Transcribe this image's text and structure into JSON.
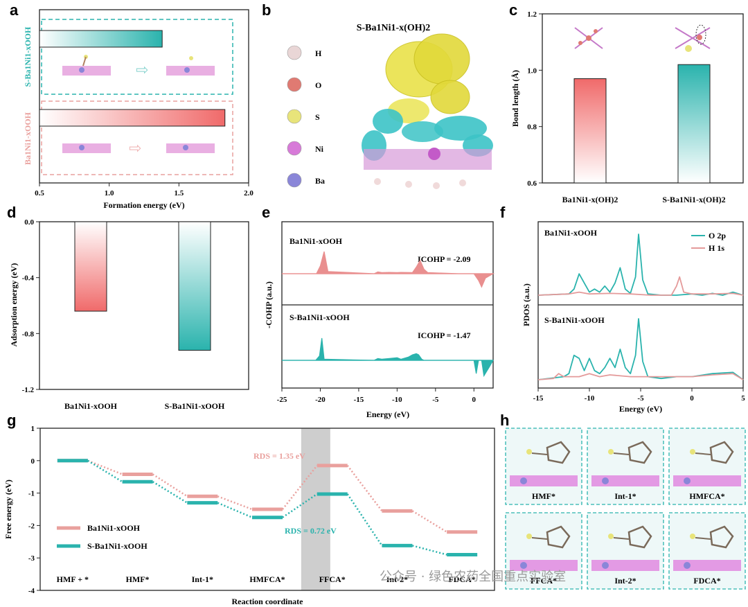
{
  "panels": {
    "a": {
      "label": "a",
      "chart_data": {
        "type": "bar",
        "orientation": "horizontal",
        "categories": [
          "S-Ba1Ni1-xOOH",
          "Ba1Ni1-xOOH"
        ],
        "series": [
          {
            "values": [
              1.38,
              1.83
            ]
          }
        ],
        "xlabel": "Formation energy (eV)",
        "xlim": [
          0.5,
          2.0
        ],
        "xticks": [
          "0.5",
          "1.0",
          "1.5",
          "2.0"
        ],
        "colors": [
          "#2ab3ad",
          "#f06a6a"
        ]
      }
    },
    "b": {
      "label": "b",
      "title": "S-Ba1Ni1-x(OH)2",
      "legend": [
        {
          "label": "H",
          "color": "#e9d6d6"
        },
        {
          "label": "O",
          "color": "#e07a72"
        },
        {
          "label": "S",
          "color": "#e8e47a"
        },
        {
          "label": "Ni",
          "color": "#d77ad8"
        },
        {
          "label": "Ba",
          "color": "#8a86d8"
        }
      ]
    },
    "c": {
      "label": "c",
      "chart_data": {
        "type": "bar",
        "categories": [
          "Ba1Ni1-x(OH)2",
          "S-Ba1Ni1-x(OH)2"
        ],
        "series": [
          {
            "values": [
              0.97,
              1.02
            ]
          }
        ],
        "ylabel": "Bond length (Å)",
        "ylim": [
          0.6,
          1.2
        ],
        "yticks": [
          "0.6",
          "0.8",
          "1.0",
          "1.2"
        ],
        "colors": [
          "#f06a6a",
          "#2ab3ad"
        ]
      }
    },
    "d": {
      "label": "d",
      "chart_data": {
        "type": "bar",
        "categories": [
          "Ba1Ni1-xOOH",
          "S-Ba1Ni1-xOOH"
        ],
        "series": [
          {
            "values": [
              -0.64,
              -0.92
            ]
          }
        ],
        "ylabel": "Adsorption energy (eV)",
        "ylim": [
          -1.2,
          0.0
        ],
        "yticks": [
          "0.0",
          "-0.4",
          "-0.8",
          "-1.2"
        ],
        "colors": [
          "#f06a6a",
          "#2ab3ad"
        ]
      }
    },
    "e": {
      "label": "e",
      "chart_data": {
        "type": "area",
        "xlabel": "Energy (eV)",
        "ylabel": "-COHP (a.u.)",
        "xlim": [
          -25,
          2.5
        ],
        "xticks": [
          "-25",
          "-20",
          "-15",
          "-10",
          "-5",
          "0"
        ],
        "subplots": [
          {
            "name": "Ba1Ni1-xOOH",
            "annotation": "ICOHP = -2.09",
            "color": "#e98f8f",
            "x": [
              -25,
              -20.5,
              -20,
              -19.5,
              -19,
              -13,
              -12.5,
              -12,
              -11,
              -10,
              -9.5,
              -8,
              -7.5,
              -7,
              -6.5,
              -6,
              -2,
              0,
              0.6,
              1,
              1.5,
              2.5
            ],
            "y": [
              0,
              0,
              0.35,
              1.0,
              0.1,
              0,
              0.08,
              0.05,
              0.06,
              0.05,
              0.06,
              0.05,
              0.3,
              0.6,
              0.2,
              0.05,
              0.0,
              0.0,
              -0.3,
              -0.6,
              -0.2,
              0
            ]
          },
          {
            "name": "S-Ba1Ni1-xOOH",
            "annotation": "ICOHP = -1.47",
            "color": "#2ab3ad",
            "x": [
              -25,
              -20.6,
              -20.1,
              -19.8,
              -19.5,
              -13,
              -12.5,
              -12,
              -11,
              -10,
              -9.5,
              -8.5,
              -8,
              -7.5,
              -7.2,
              -6.8,
              -6.5,
              -2,
              0,
              0.3,
              0.6,
              1,
              1.3,
              2,
              2.5
            ],
            "y": [
              0,
              0,
              0.2,
              1.0,
              0.05,
              0,
              0.08,
              0.05,
              0.08,
              0.12,
              0.05,
              0.15,
              0.25,
              0.3,
              0.25,
              0.05,
              0,
              0,
              0,
              -0.6,
              0,
              0,
              -0.7,
              -0.3,
              0
            ]
          }
        ]
      }
    },
    "f": {
      "label": "f",
      "chart_data": {
        "type": "line",
        "xlabel": "Energy (eV)",
        "ylabel": "PDOS (a.u.)",
        "xlim": [
          -15,
          5
        ],
        "xticks": [
          "-15",
          "-10",
          "-5",
          "0",
          "5"
        ],
        "legend": [
          {
            "name": "O 2p",
            "color": "#2ab3ad"
          },
          {
            "name": "H 1s",
            "color": "#e49a9a"
          }
        ],
        "subplots": [
          {
            "name": "Ba1Ni1-xOOH",
            "series": [
              {
                "name": "O 2p",
                "x": [
                  -15,
                  -12,
                  -11.5,
                  -11,
                  -10.5,
                  -10,
                  -9.5,
                  -9,
                  -8.5,
                  -8,
                  -7.5,
                  -7,
                  -6.5,
                  -6,
                  -5.5,
                  -5.2,
                  -4.8,
                  -4.3,
                  -3,
                  -1.5,
                  0,
                  1,
                  2,
                  3,
                  4,
                  5
                ],
                "y": [
                  0,
                  0.02,
                  0.1,
                  0.35,
                  0.2,
                  0.05,
                  0.1,
                  0.05,
                  0.15,
                  0.05,
                  0.2,
                  0.45,
                  0.1,
                  0.03,
                  0.3,
                  1.0,
                  0.25,
                  0.02,
                  0,
                  0,
                  0.02,
                  0,
                  0.03,
                  0,
                  0.05,
                  0
                ]
              },
              {
                "name": "H 1s",
                "x": [
                  -15,
                  -12,
                  -11,
                  -10,
                  -8,
                  -6,
                  -4,
                  -2,
                  -1.5,
                  -1.2,
                  -0.8,
                  0,
                  2,
                  4,
                  5
                ],
                "y": [
                  0,
                  0.02,
                  0.05,
                  0.02,
                  0.03,
                  0.02,
                  0,
                  0,
                  0.15,
                  0.3,
                  0.05,
                  0.02,
                  0.02,
                  0.03,
                  0
                ]
              }
            ]
          },
          {
            "name": "S-Ba1Ni1-xOOH",
            "series": [
              {
                "name": "O 2p",
                "x": [
                  -15,
                  -12.5,
                  -12,
                  -11.5,
                  -11,
                  -10.5,
                  -10,
                  -9.5,
                  -9,
                  -8.5,
                  -8,
                  -7.5,
                  -7,
                  -6.5,
                  -6,
                  -5.5,
                  -5.2,
                  -4.8,
                  -4.3,
                  -3,
                  -1.5,
                  0,
                  2,
                  4,
                  5
                ],
                "y": [
                  0,
                  0.05,
                  0.1,
                  0.4,
                  0.35,
                  0.15,
                  0.35,
                  0.15,
                  0.1,
                  0.2,
                  0.35,
                  0.2,
                  0.5,
                  0.2,
                  0.1,
                  0.4,
                  1.0,
                  0.3,
                  0.05,
                  0.02,
                  0.05,
                  0.05,
                  0.1,
                  0.12,
                  0
                ]
              },
              {
                "name": "H 1s",
                "x": [
                  -15,
                  -13.5,
                  -13,
                  -12.5,
                  -11,
                  -10,
                  -9,
                  -8,
                  -6,
                  -4,
                  -2,
                  0,
                  2,
                  4,
                  5
                ],
                "y": [
                  0,
                  0.02,
                  0.1,
                  0.05,
                  0.05,
                  0.1,
                  0.05,
                  0.08,
                  0.05,
                  0.05,
                  0.05,
                  0.05,
                  0.08,
                  0.1,
                  0
                ]
              }
            ]
          }
        ]
      }
    },
    "g": {
      "label": "g",
      "chart_data": {
        "type": "line",
        "subtype": "energy-profile",
        "categories": [
          "HMF + *",
          "HMF*",
          "Int-1*",
          "HMFCA*",
          "FFCA*",
          "Int-2*",
          "FDCA*"
        ],
        "xlabel": "Reaction coordinate",
        "ylabel": "Free energy (eV)",
        "ylim": [
          -4,
          1
        ],
        "yticks": [
          "1",
          "0",
          "-1",
          "-2",
          "-3",
          "-4"
        ],
        "series": [
          {
            "name": "Ba1Ni1-xOOH",
            "color": "#e9a09d",
            "values": [
              0.0,
              -0.42,
              -1.1,
              -1.5,
              -0.15,
              -1.55,
              -2.2
            ]
          },
          {
            "name": "S-Ba1Ni1-xOOH",
            "color": "#2ab3ad",
            "values": [
              0.0,
              -0.65,
              -1.3,
              -1.75,
              -1.03,
              -2.62,
              -2.9
            ]
          }
        ],
        "annotations": [
          {
            "text": "RDS = 1.35 eV",
            "color": "#e9a09d"
          },
          {
            "text": "RDS = 0.72 eV",
            "color": "#2ab3ad"
          }
        ],
        "highlight_category": "FFCA*"
      }
    },
    "h": {
      "label": "h",
      "tiles": [
        "HMF*",
        "Int-1*",
        "HMFCA*",
        "FFCA*",
        "Int-2*",
        "FDCA*"
      ]
    }
  },
  "watermark": "公众号 · 绿色农药全国重点实验室"
}
